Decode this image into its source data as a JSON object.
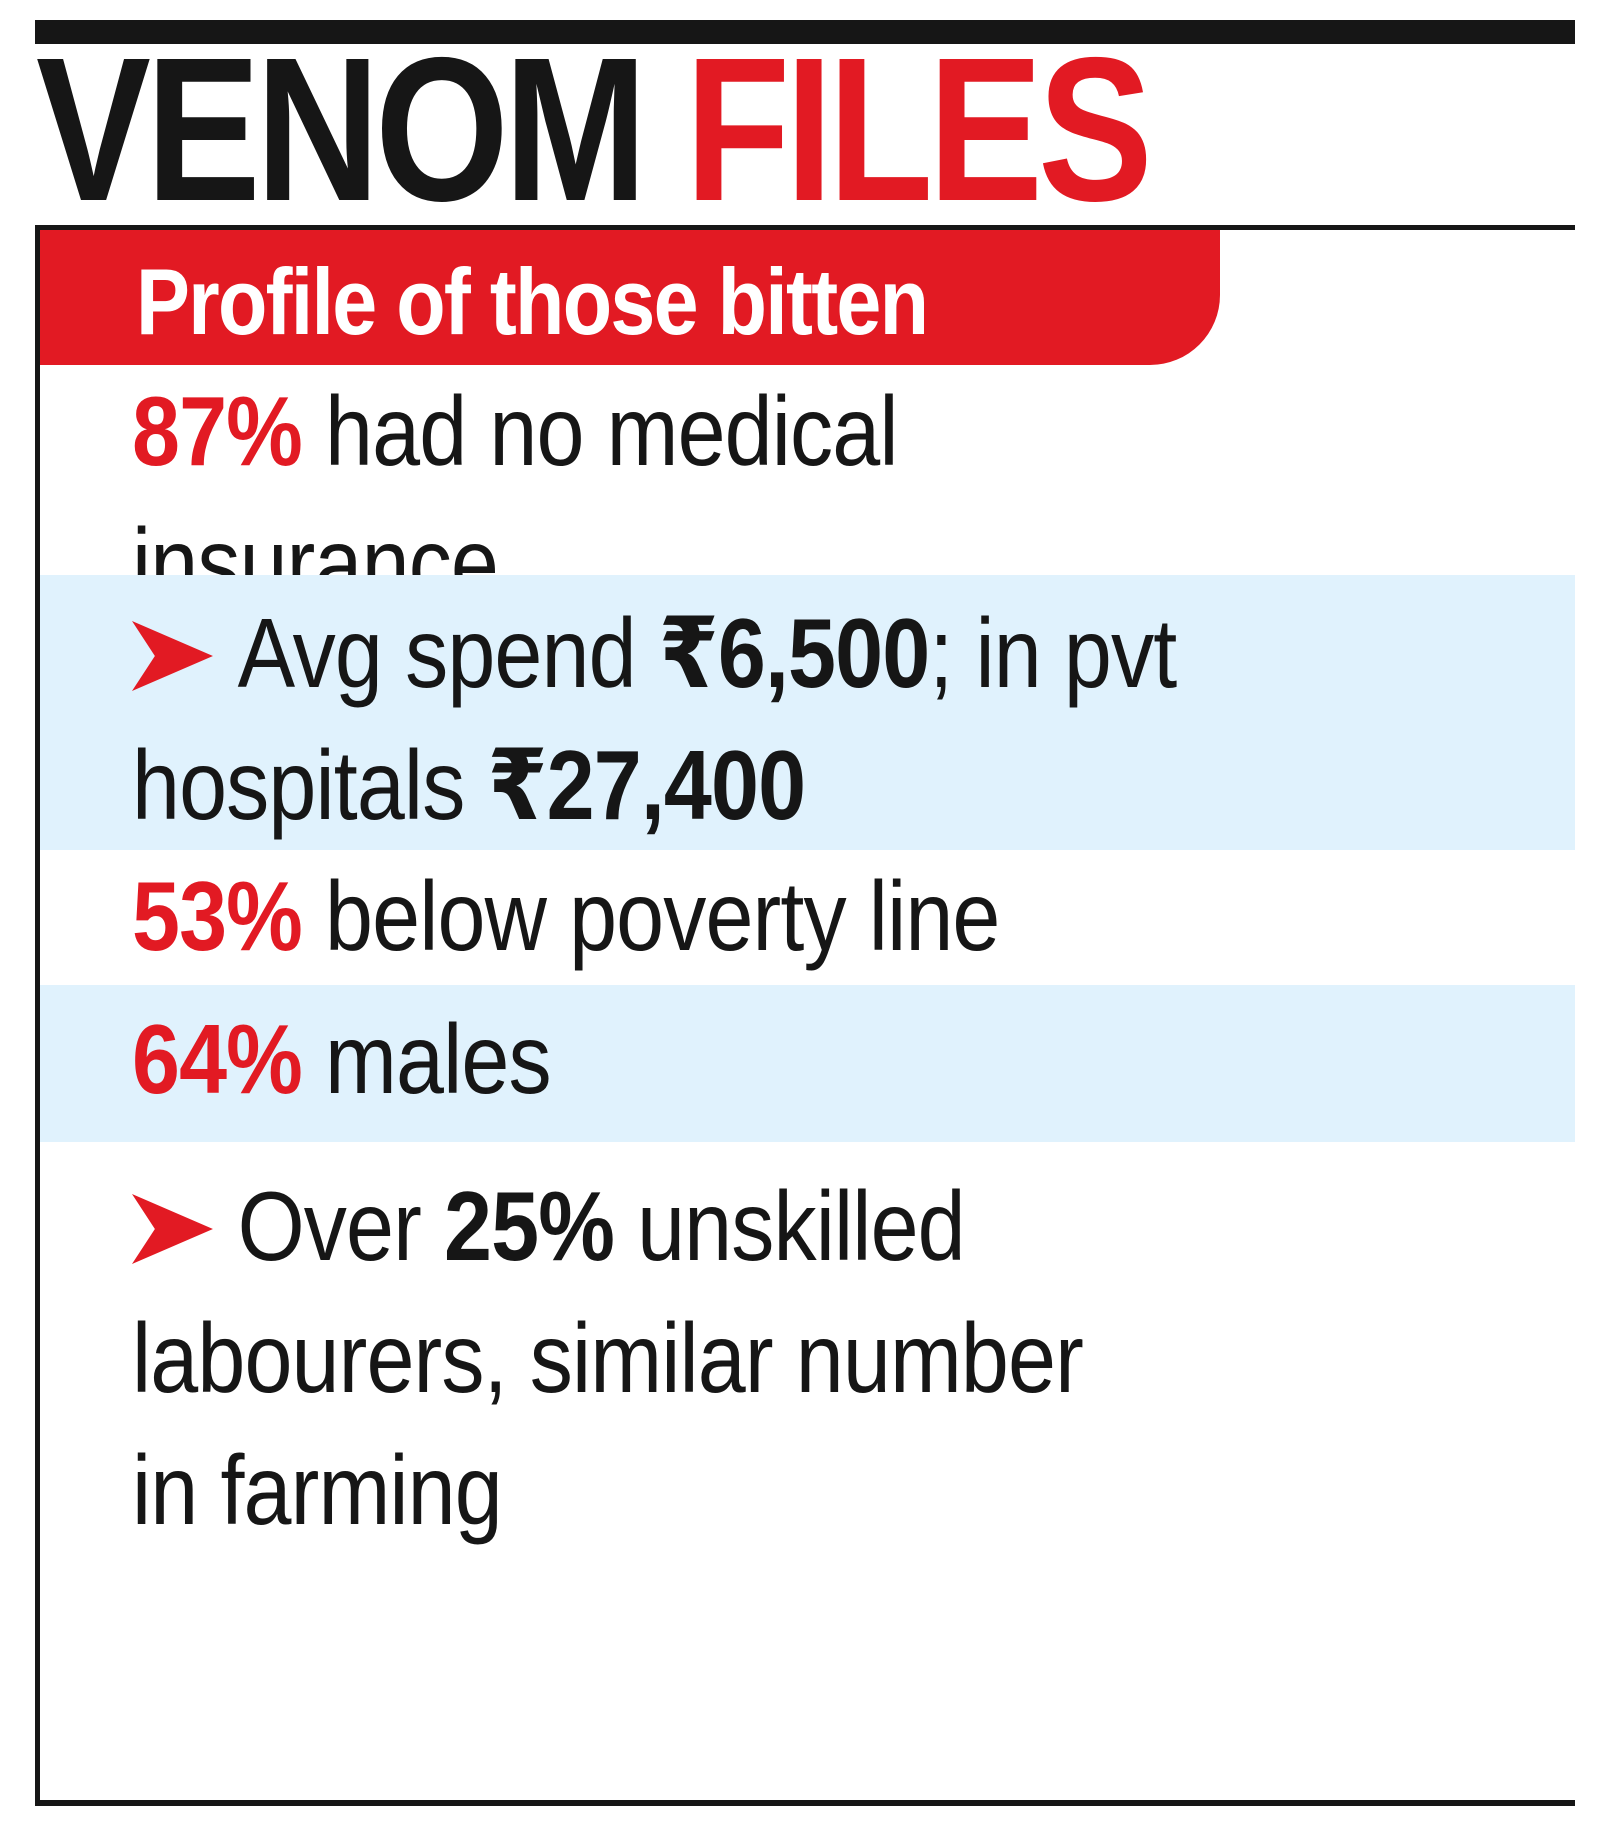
{
  "headline": {
    "part1": "VENOM",
    "part2": "FILES"
  },
  "subhead": "Profile of those bitten",
  "stats": [
    {
      "highlight": "87%",
      "line1_rest": " had no medical",
      "line2": "insurance"
    },
    {
      "icon": "arrow-icon",
      "line1_a": "Avg spend ",
      "line1_b": "₹6,500",
      "line1_c": "; in pvt",
      "line2_a": "hospitals ",
      "line2_b": "₹27,400"
    },
    {
      "highlight": "53%",
      "rest": " below poverty line"
    },
    {
      "highlight": "64%",
      "rest": " males"
    },
    {
      "icon": "arrow-icon",
      "line1_a": "Over ",
      "line1_b": "25%",
      "line1_c": " unskilled",
      "line2": "labourers, similar number",
      "line3": "in farming"
    }
  ],
  "colors": {
    "accent_red": "#e21a23",
    "text_black": "#161616",
    "band_blue": "#e0f2fd"
  }
}
